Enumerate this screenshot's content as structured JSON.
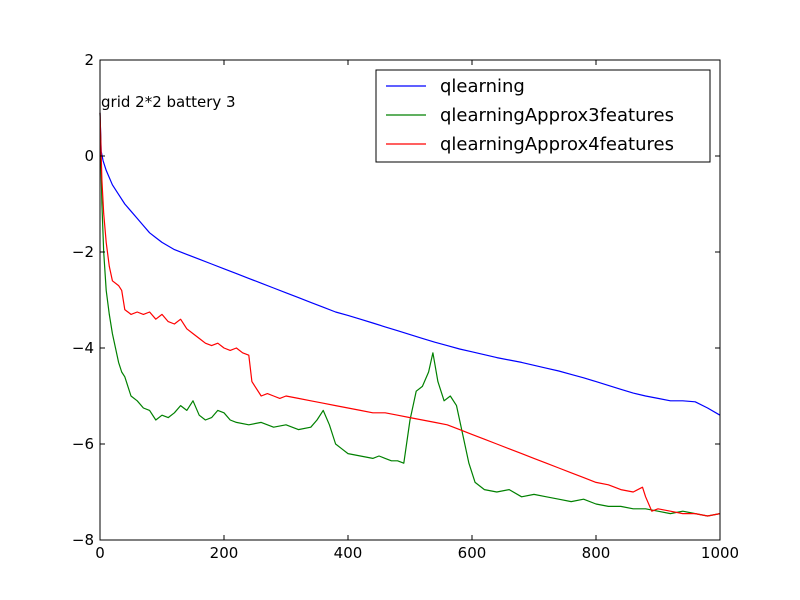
{
  "chart_data": {
    "type": "line",
    "title": "",
    "xlabel": "",
    "ylabel": "",
    "annotation": "grid 2*2 battery 3",
    "xlim": [
      0,
      1000
    ],
    "ylim": [
      -8,
      2
    ],
    "x_ticks": [
      0,
      200,
      400,
      600,
      800,
      1000
    ],
    "y_ticks": [
      2,
      0,
      -2,
      -4,
      -6,
      -8
    ],
    "x_tick_labels": [
      "0",
      "200",
      "400",
      "600",
      "800",
      "1000"
    ],
    "y_tick_labels": [
      "2",
      "0",
      "−2",
      "−4",
      "−6",
      "−8"
    ],
    "grid": false,
    "legend_position": "top-right",
    "series": [
      {
        "name": "qlearning",
        "color": "#0000ff",
        "points": [
          [
            0,
            0.9
          ],
          [
            2,
            0.1
          ],
          [
            5,
            -0.1
          ],
          [
            10,
            -0.3
          ],
          [
            20,
            -0.6
          ],
          [
            30,
            -0.8
          ],
          [
            40,
            -1.0
          ],
          [
            50,
            -1.15
          ],
          [
            60,
            -1.3
          ],
          [
            70,
            -1.45
          ],
          [
            80,
            -1.6
          ],
          [
            90,
            -1.7
          ],
          [
            100,
            -1.8
          ],
          [
            120,
            -1.95
          ],
          [
            140,
            -2.05
          ],
          [
            160,
            -2.15
          ],
          [
            180,
            -2.25
          ],
          [
            200,
            -2.35
          ],
          [
            220,
            -2.45
          ],
          [
            240,
            -2.55
          ],
          [
            260,
            -2.65
          ],
          [
            280,
            -2.75
          ],
          [
            300,
            -2.85
          ],
          [
            320,
            -2.95
          ],
          [
            340,
            -3.05
          ],
          [
            360,
            -3.15
          ],
          [
            380,
            -3.25
          ],
          [
            400,
            -3.32
          ],
          [
            420,
            -3.4
          ],
          [
            440,
            -3.48
          ],
          [
            460,
            -3.56
          ],
          [
            480,
            -3.64
          ],
          [
            500,
            -3.72
          ],
          [
            520,
            -3.8
          ],
          [
            540,
            -3.88
          ],
          [
            560,
            -3.95
          ],
          [
            580,
            -4.02
          ],
          [
            600,
            -4.08
          ],
          [
            620,
            -4.14
          ],
          [
            640,
            -4.2
          ],
          [
            660,
            -4.25
          ],
          [
            680,
            -4.3
          ],
          [
            700,
            -4.36
          ],
          [
            720,
            -4.42
          ],
          [
            740,
            -4.48
          ],
          [
            760,
            -4.55
          ],
          [
            780,
            -4.62
          ],
          [
            800,
            -4.7
          ],
          [
            820,
            -4.78
          ],
          [
            840,
            -4.86
          ],
          [
            860,
            -4.94
          ],
          [
            880,
            -5.0
          ],
          [
            900,
            -5.05
          ],
          [
            920,
            -5.1
          ],
          [
            940,
            -5.1
          ],
          [
            960,
            -5.12
          ],
          [
            980,
            -5.25
          ],
          [
            1000,
            -5.4
          ]
        ]
      },
      {
        "name": "qlearningApprox3features",
        "color": "#008000",
        "points": [
          [
            0,
            0.9
          ],
          [
            3,
            -1.0
          ],
          [
            6,
            -2.0
          ],
          [
            10,
            -2.8
          ],
          [
            15,
            -3.3
          ],
          [
            20,
            -3.7
          ],
          [
            25,
            -4.0
          ],
          [
            30,
            -4.3
          ],
          [
            35,
            -4.5
          ],
          [
            40,
            -4.6
          ],
          [
            45,
            -4.8
          ],
          [
            50,
            -5.0
          ],
          [
            60,
            -5.1
          ],
          [
            70,
            -5.25
          ],
          [
            80,
            -5.3
          ],
          [
            90,
            -5.5
          ],
          [
            100,
            -5.4
          ],
          [
            110,
            -5.45
          ],
          [
            120,
            -5.35
          ],
          [
            130,
            -5.2
          ],
          [
            140,
            -5.3
          ],
          [
            150,
            -5.1
          ],
          [
            160,
            -5.4
          ],
          [
            170,
            -5.5
          ],
          [
            180,
            -5.45
          ],
          [
            190,
            -5.3
          ],
          [
            200,
            -5.35
          ],
          [
            210,
            -5.5
          ],
          [
            220,
            -5.55
          ],
          [
            240,
            -5.6
          ],
          [
            260,
            -5.55
          ],
          [
            280,
            -5.65
          ],
          [
            300,
            -5.6
          ],
          [
            320,
            -5.7
          ],
          [
            340,
            -5.65
          ],
          [
            350,
            -5.5
          ],
          [
            360,
            -5.3
          ],
          [
            370,
            -5.6
          ],
          [
            380,
            -6.0
          ],
          [
            390,
            -6.1
          ],
          [
            400,
            -6.2
          ],
          [
            420,
            -6.25
          ],
          [
            440,
            -6.3
          ],
          [
            450,
            -6.25
          ],
          [
            460,
            -6.3
          ],
          [
            470,
            -6.35
          ],
          [
            480,
            -6.35
          ],
          [
            490,
            -6.4
          ],
          [
            500,
            -5.5
          ],
          [
            510,
            -4.9
          ],
          [
            520,
            -4.8
          ],
          [
            530,
            -4.5
          ],
          [
            537,
            -4.1
          ],
          [
            545,
            -4.7
          ],
          [
            555,
            -5.1
          ],
          [
            565,
            -5.0
          ],
          [
            575,
            -5.2
          ],
          [
            585,
            -5.8
          ],
          [
            595,
            -6.4
          ],
          [
            605,
            -6.8
          ],
          [
            620,
            -6.95
          ],
          [
            640,
            -7.0
          ],
          [
            660,
            -6.95
          ],
          [
            680,
            -7.1
          ],
          [
            700,
            -7.05
          ],
          [
            720,
            -7.1
          ],
          [
            740,
            -7.15
          ],
          [
            760,
            -7.2
          ],
          [
            780,
            -7.15
          ],
          [
            800,
            -7.25
          ],
          [
            820,
            -7.3
          ],
          [
            840,
            -7.3
          ],
          [
            860,
            -7.35
          ],
          [
            880,
            -7.35
          ],
          [
            900,
            -7.4
          ],
          [
            920,
            -7.45
          ],
          [
            940,
            -7.4
          ],
          [
            960,
            -7.45
          ],
          [
            980,
            -7.5
          ],
          [
            1000,
            -7.45
          ]
        ]
      },
      {
        "name": "qlearningApprox4features",
        "color": "#ff0000",
        "points": [
          [
            0,
            0.9
          ],
          [
            3,
            -0.5
          ],
          [
            6,
            -1.2
          ],
          [
            10,
            -1.8
          ],
          [
            15,
            -2.3
          ],
          [
            20,
            -2.6
          ],
          [
            30,
            -2.7
          ],
          [
            35,
            -2.8
          ],
          [
            40,
            -3.2
          ],
          [
            50,
            -3.3
          ],
          [
            60,
            -3.25
          ],
          [
            70,
            -3.3
          ],
          [
            80,
            -3.25
          ],
          [
            90,
            -3.4
          ],
          [
            100,
            -3.3
          ],
          [
            110,
            -3.45
          ],
          [
            120,
            -3.5
          ],
          [
            130,
            -3.4
          ],
          [
            140,
            -3.6
          ],
          [
            150,
            -3.7
          ],
          [
            160,
            -3.8
          ],
          [
            170,
            -3.9
          ],
          [
            180,
            -3.95
          ],
          [
            190,
            -3.9
          ],
          [
            200,
            -4.0
          ],
          [
            210,
            -4.05
          ],
          [
            220,
            -4.0
          ],
          [
            230,
            -4.1
          ],
          [
            240,
            -4.15
          ],
          [
            245,
            -4.7
          ],
          [
            250,
            -4.8
          ],
          [
            260,
            -5.0
          ],
          [
            270,
            -4.95
          ],
          [
            280,
            -5.0
          ],
          [
            290,
            -5.05
          ],
          [
            300,
            -5.0
          ],
          [
            320,
            -5.05
          ],
          [
            340,
            -5.1
          ],
          [
            360,
            -5.15
          ],
          [
            380,
            -5.2
          ],
          [
            400,
            -5.25
          ],
          [
            420,
            -5.3
          ],
          [
            440,
            -5.35
          ],
          [
            460,
            -5.35
          ],
          [
            480,
            -5.4
          ],
          [
            500,
            -5.45
          ],
          [
            520,
            -5.5
          ],
          [
            540,
            -5.55
          ],
          [
            560,
            -5.6
          ],
          [
            580,
            -5.7
          ],
          [
            600,
            -5.8
          ],
          [
            620,
            -5.9
          ],
          [
            640,
            -6.0
          ],
          [
            660,
            -6.1
          ],
          [
            680,
            -6.2
          ],
          [
            700,
            -6.3
          ],
          [
            720,
            -6.4
          ],
          [
            740,
            -6.5
          ],
          [
            760,
            -6.6
          ],
          [
            780,
            -6.7
          ],
          [
            800,
            -6.8
          ],
          [
            820,
            -6.85
          ],
          [
            840,
            -6.95
          ],
          [
            860,
            -7.0
          ],
          [
            875,
            -6.9
          ],
          [
            880,
            -7.1
          ],
          [
            890,
            -7.4
          ],
          [
            900,
            -7.35
          ],
          [
            920,
            -7.4
          ],
          [
            940,
            -7.45
          ],
          [
            960,
            -7.45
          ],
          [
            980,
            -7.5
          ],
          [
            1000,
            -7.45
          ]
        ]
      }
    ]
  }
}
